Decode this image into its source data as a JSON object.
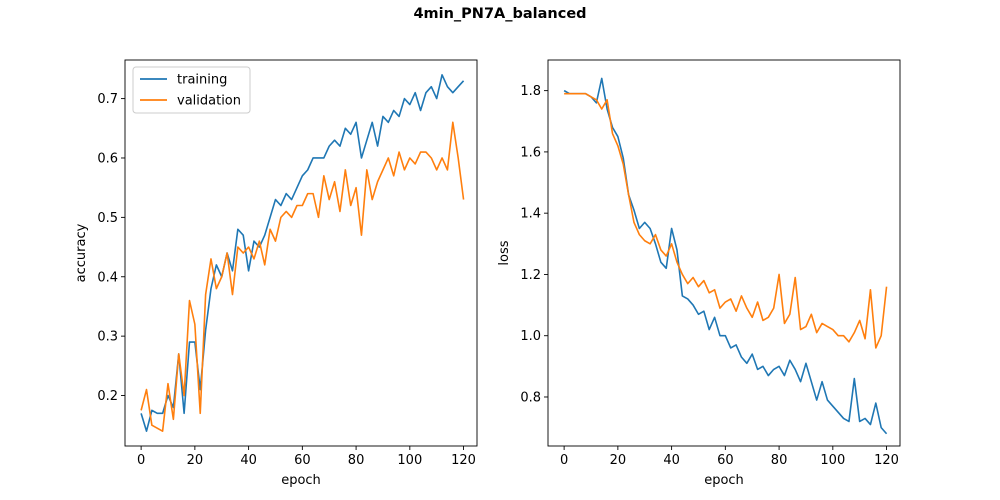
{
  "figure": {
    "title": "4min_PN7A_balanced"
  },
  "colors": {
    "training": "#1f77b4",
    "validation": "#ff7f0e"
  },
  "chart_data": [
    {
      "type": "line",
      "title": "",
      "xlabel": "epoch",
      "ylabel": "accuracy",
      "xlim": [
        -6,
        125
      ],
      "ylim": [
        0.115,
        0.765
      ],
      "xticks": [
        0,
        20,
        40,
        60,
        80,
        100,
        120
      ],
      "yticks": [
        0.2,
        0.3,
        0.4,
        0.5,
        0.6,
        0.7
      ],
      "ytick_labels": [
        "0.2",
        "0.3",
        "0.4",
        "0.5",
        "0.6",
        "0.7"
      ],
      "legend": {
        "position": "top-left",
        "entries": [
          "training",
          "validation"
        ]
      },
      "grid": false,
      "series": [
        {
          "name": "training",
          "x": [
            0,
            2,
            4,
            6,
            8,
            10,
            12,
            14,
            16,
            18,
            20,
            22,
            24,
            26,
            28,
            30,
            32,
            34,
            36,
            38,
            40,
            42,
            44,
            46,
            48,
            50,
            52,
            54,
            56,
            58,
            60,
            62,
            64,
            66,
            68,
            70,
            72,
            74,
            76,
            78,
            80,
            82,
            84,
            86,
            88,
            90,
            92,
            94,
            96,
            98,
            100,
            102,
            104,
            106,
            108,
            110,
            112,
            114,
            116,
            118,
            120
          ],
          "y": [
            0.17,
            0.14,
            0.175,
            0.17,
            0.17,
            0.2,
            0.18,
            0.27,
            0.17,
            0.29,
            0.29,
            0.21,
            0.31,
            0.38,
            0.42,
            0.4,
            0.44,
            0.41,
            0.48,
            0.47,
            0.41,
            0.46,
            0.45,
            0.47,
            0.5,
            0.53,
            0.52,
            0.54,
            0.53,
            0.55,
            0.57,
            0.58,
            0.6,
            0.6,
            0.6,
            0.62,
            0.63,
            0.62,
            0.65,
            0.64,
            0.66,
            0.6,
            0.63,
            0.66,
            0.62,
            0.67,
            0.66,
            0.68,
            0.67,
            0.7,
            0.69,
            0.71,
            0.68,
            0.71,
            0.72,
            0.7,
            0.74,
            0.72,
            0.71,
            0.72,
            0.73
          ]
        },
        {
          "name": "validation",
          "x": [
            0,
            2,
            4,
            6,
            8,
            10,
            12,
            14,
            16,
            18,
            20,
            22,
            24,
            26,
            28,
            30,
            32,
            34,
            36,
            38,
            40,
            42,
            44,
            46,
            48,
            50,
            52,
            54,
            56,
            58,
            60,
            62,
            64,
            66,
            68,
            70,
            72,
            74,
            76,
            78,
            80,
            82,
            84,
            86,
            88,
            90,
            92,
            94,
            96,
            98,
            100,
            102,
            104,
            106,
            108,
            110,
            112,
            114,
            116,
            118,
            120
          ],
          "y": [
            0.175,
            0.21,
            0.15,
            0.145,
            0.14,
            0.22,
            0.16,
            0.27,
            0.2,
            0.36,
            0.32,
            0.17,
            0.37,
            0.43,
            0.38,
            0.4,
            0.44,
            0.37,
            0.45,
            0.44,
            0.45,
            0.43,
            0.46,
            0.42,
            0.48,
            0.46,
            0.5,
            0.51,
            0.5,
            0.52,
            0.52,
            0.54,
            0.54,
            0.5,
            0.57,
            0.53,
            0.56,
            0.51,
            0.58,
            0.52,
            0.55,
            0.47,
            0.58,
            0.53,
            0.56,
            0.58,
            0.6,
            0.57,
            0.61,
            0.58,
            0.6,
            0.59,
            0.61,
            0.61,
            0.6,
            0.58,
            0.6,
            0.58,
            0.66,
            0.6,
            0.53
          ]
        }
      ]
    },
    {
      "type": "line",
      "title": "",
      "xlabel": "epoch",
      "ylabel": "loss",
      "xlim": [
        -6,
        125
      ],
      "ylim": [
        0.64,
        1.9
      ],
      "xticks": [
        0,
        20,
        40,
        60,
        80,
        100,
        120
      ],
      "yticks": [
        0.8,
        1.0,
        1.2,
        1.4,
        1.6,
        1.8
      ],
      "ytick_labels": [
        "0.8",
        "1.0",
        "1.2",
        "1.4",
        "1.6",
        "1.8"
      ],
      "grid": false,
      "series": [
        {
          "name": "training",
          "x": [
            0,
            2,
            4,
            6,
            8,
            10,
            12,
            14,
            16,
            18,
            20,
            22,
            24,
            26,
            28,
            30,
            32,
            34,
            36,
            38,
            40,
            42,
            44,
            46,
            48,
            50,
            52,
            54,
            56,
            58,
            60,
            62,
            64,
            66,
            68,
            70,
            72,
            74,
            76,
            78,
            80,
            82,
            84,
            86,
            88,
            90,
            92,
            94,
            96,
            98,
            100,
            102,
            104,
            106,
            108,
            110,
            112,
            114,
            116,
            118,
            120
          ],
          "y": [
            1.8,
            1.79,
            1.79,
            1.79,
            1.79,
            1.78,
            1.76,
            1.84,
            1.74,
            1.68,
            1.65,
            1.58,
            1.46,
            1.41,
            1.35,
            1.37,
            1.35,
            1.3,
            1.24,
            1.22,
            1.35,
            1.28,
            1.13,
            1.12,
            1.1,
            1.07,
            1.08,
            1.02,
            1.06,
            1.0,
            1.0,
            0.96,
            0.97,
            0.93,
            0.91,
            0.94,
            0.89,
            0.9,
            0.87,
            0.89,
            0.9,
            0.87,
            0.92,
            0.89,
            0.85,
            0.91,
            0.85,
            0.79,
            0.85,
            0.79,
            0.77,
            0.75,
            0.73,
            0.72,
            0.86,
            0.72,
            0.73,
            0.71,
            0.78,
            0.7,
            0.68
          ]
        },
        {
          "name": "validation",
          "x": [
            0,
            2,
            4,
            6,
            8,
            10,
            12,
            14,
            16,
            18,
            20,
            22,
            24,
            26,
            28,
            30,
            32,
            34,
            36,
            38,
            40,
            42,
            44,
            46,
            48,
            50,
            52,
            54,
            56,
            58,
            60,
            62,
            64,
            66,
            68,
            70,
            72,
            74,
            76,
            78,
            80,
            82,
            84,
            86,
            88,
            90,
            92,
            94,
            96,
            98,
            100,
            102,
            104,
            106,
            108,
            110,
            112,
            114,
            116,
            118,
            120
          ],
          "y": [
            1.79,
            1.79,
            1.79,
            1.79,
            1.79,
            1.78,
            1.77,
            1.74,
            1.77,
            1.66,
            1.62,
            1.56,
            1.46,
            1.37,
            1.33,
            1.31,
            1.3,
            1.33,
            1.28,
            1.26,
            1.3,
            1.24,
            1.2,
            1.17,
            1.19,
            1.16,
            1.18,
            1.14,
            1.15,
            1.09,
            1.11,
            1.12,
            1.08,
            1.13,
            1.09,
            1.06,
            1.11,
            1.05,
            1.06,
            1.09,
            1.2,
            1.04,
            1.07,
            1.19,
            1.02,
            1.03,
            1.07,
            1.01,
            1.04,
            1.03,
            1.02,
            1.0,
            1.0,
            0.98,
            1.01,
            1.05,
            0.99,
            1.15,
            0.96,
            1.0,
            1.16
          ]
        }
      ]
    }
  ]
}
